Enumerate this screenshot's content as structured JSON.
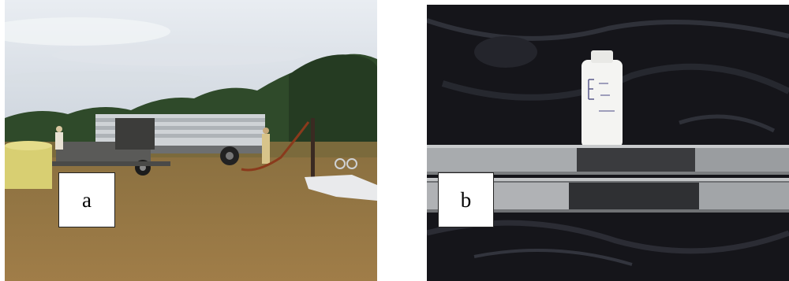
{
  "panels": [
    {
      "label": "a"
    },
    {
      "label": "b"
    }
  ],
  "colors": {
    "sky": "#c9d0d8",
    "trees": "#2f4a2a",
    "grass": "#9a7a45",
    "plastic": "#15151a",
    "core": "#6e6e70"
  }
}
